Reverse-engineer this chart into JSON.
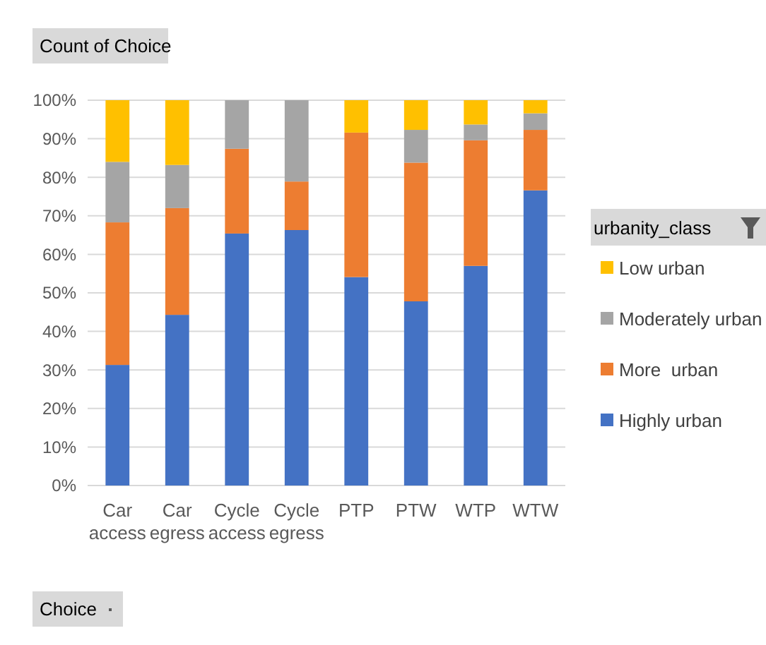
{
  "chart_data": {
    "type": "bar",
    "stacked": true,
    "categories": [
      "Car access",
      "Car egress",
      "Cycle access",
      "Cycle egress",
      "PTP",
      "PTW",
      "WTP",
      "WTW"
    ],
    "series": [
      {
        "name": "Highly urban",
        "color": "#4472c4",
        "values": [
          31.3,
          44.3,
          65.4,
          66.3,
          54.1,
          47.8,
          57.0,
          76.6
        ]
      },
      {
        "name": "More  urban",
        "color": "#ed7d31",
        "values": [
          37.0,
          27.7,
          22.0,
          12.6,
          37.5,
          36.0,
          32.6,
          15.7
        ]
      },
      {
        "name": "Moderately urban",
        "color": "#a5a5a5",
        "values": [
          15.7,
          11.2,
          12.6,
          21.1,
          0,
          8.5,
          4.1,
          4.3
        ]
      },
      {
        "name": "Low urban",
        "color": "#ffc000",
        "values": [
          16.0,
          16.8,
          0,
          0,
          8.4,
          7.7,
          6.3,
          3.4
        ]
      }
    ],
    "ylim": [
      0,
      100
    ],
    "yticks": [
      {
        "value": 0,
        "label": "0%"
      },
      {
        "value": 10,
        "label": "10%"
      },
      {
        "value": 20,
        "label": "20%"
      },
      {
        "value": 30,
        "label": "30%"
      },
      {
        "value": 40,
        "label": "40%"
      },
      {
        "value": 50,
        "label": "50%"
      },
      {
        "value": 60,
        "label": "60%"
      },
      {
        "value": 70,
        "label": "70%"
      },
      {
        "value": 80,
        "label": "80%"
      },
      {
        "value": 90,
        "label": "90%"
      },
      {
        "value": 100,
        "label": "100%"
      }
    ],
    "grid": "y",
    "legend": "right",
    "legend_title": "urbanity_class",
    "annotations": [
      "Count of Choice",
      "Choice"
    ]
  }
}
